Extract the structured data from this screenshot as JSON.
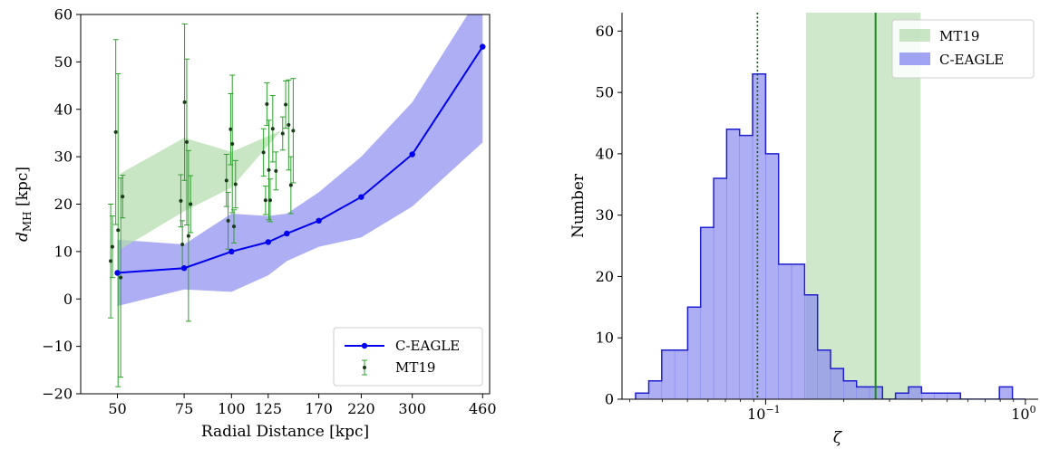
{
  "chart_data": [
    {
      "type": "line",
      "xlabel": "Radial Distance [kpc]",
      "ylabel_main": "d",
      "ylabel_sub": "MH",
      "ylabel_unit": " [kpc]",
      "xscale": "log",
      "xlim": [
        40,
        480
      ],
      "ylim": [
        -20,
        60
      ],
      "x_ticks": [
        {
          "value": 50,
          "label": "50"
        },
        {
          "value": 75,
          "label": "75"
        },
        {
          "value": 100,
          "label": "100"
        },
        {
          "value": 125,
          "label": "125"
        },
        {
          "value": 170,
          "label": "170"
        },
        {
          "value": 220,
          "label": "220"
        },
        {
          "value": 300,
          "label": "300"
        },
        {
          "value": 460,
          "label": "460"
        }
      ],
      "y_ticks": [
        {
          "value": -20,
          "label": "−20"
        },
        {
          "value": -10,
          "label": "−10"
        },
        {
          "value": 0,
          "label": "0"
        },
        {
          "value": 10,
          "label": "10"
        },
        {
          "value": 20,
          "label": "20"
        },
        {
          "value": 30,
          "label": "30"
        },
        {
          "value": 40,
          "label": "40"
        },
        {
          "value": 50,
          "label": "50"
        },
        {
          "value": 60,
          "label": "60"
        }
      ],
      "legend_position": "lower-right",
      "legend": [
        {
          "label": "C-EAGLE",
          "kind": "line-marker",
          "color": "#0000ee"
        },
        {
          "label": "MT19",
          "kind": "errorbar",
          "color": "#2ca02c"
        }
      ],
      "series": [
        {
          "name": "C-EAGLE",
          "color": "#0000ee",
          "x": [
            50,
            75,
            100,
            125,
            140,
            170,
            220,
            300,
            460
          ],
          "y": [
            5.5,
            6.5,
            10.0,
            12.0,
            13.8,
            16.5,
            21.5,
            30.5,
            53.2
          ],
          "band_lower": [
            -1.5,
            2.0,
            1.5,
            5.0,
            8.0,
            11.0,
            13.0,
            19.5,
            33.0
          ],
          "band_upper": [
            12.5,
            11.5,
            18.0,
            17.5,
            18.0,
            22.5,
            30.0,
            41.5,
            65.0
          ],
          "band_color": "#8a8cf0"
        },
        {
          "name": "MT19",
          "color": "#2ca02c",
          "band_polygon": {
            "x": [
              51,
              75,
              100,
              135,
              100,
              75,
              51
            ],
            "y": [
              26.5,
              34.0,
              31.0,
              35.5,
              23.5,
              18.5,
              10.5
            ]
          },
          "band_color": "#b5dcb0",
          "points": [
            {
              "x": 48.0,
              "y": 8.0,
              "err": 12.0
            },
            {
              "x": 48.5,
              "y": 11.0,
              "err": 6.5
            },
            {
              "x": 49.5,
              "y": 35.2,
              "err": 19.5
            },
            {
              "x": 50.2,
              "y": 14.5,
              "err": 33.0
            },
            {
              "x": 51.0,
              "y": 4.5,
              "err": 21.0
            },
            {
              "x": 51.6,
              "y": 21.6,
              "err": 4.5
            },
            {
              "x": 73.5,
              "y": 20.7,
              "err": 5.5
            },
            {
              "x": 74.2,
              "y": 11.5,
              "err": 5.0
            },
            {
              "x": 75.2,
              "y": 41.5,
              "err": 16.5
            },
            {
              "x": 76.2,
              "y": 33.1,
              "err": 17.5
            },
            {
              "x": 77.0,
              "y": 13.3,
              "err": 18.0
            },
            {
              "x": 78.0,
              "y": 20.0,
              "err": 6.0
            },
            {
              "x": 97.0,
              "y": 25.0,
              "err": 5.5
            },
            {
              "x": 98.0,
              "y": 16.5,
              "err": 6.0
            },
            {
              "x": 99.5,
              "y": 35.8,
              "err": 7.5
            },
            {
              "x": 100.5,
              "y": 32.7,
              "err": 14.5
            },
            {
              "x": 101.5,
              "y": 15.3,
              "err": 3.5
            },
            {
              "x": 102.5,
              "y": 24.2,
              "err": 5.0
            },
            {
              "x": 121.5,
              "y": 30.9,
              "err": 5.0
            },
            {
              "x": 123.0,
              "y": 20.8,
              "err": 3.0
            },
            {
              "x": 124.0,
              "y": 41.1,
              "err": 4.5
            },
            {
              "x": 125.5,
              "y": 27.2,
              "err": 10.5
            },
            {
              "x": 126.5,
              "y": 20.8,
              "err": 4.5
            },
            {
              "x": 128.5,
              "y": 35.9,
              "err": 7.0
            },
            {
              "x": 131.0,
              "y": 27.0,
              "err": 4.0
            },
            {
              "x": 136.5,
              "y": 34.9,
              "err": 3.5
            },
            {
              "x": 139.0,
              "y": 41.0,
              "err": 5.0
            },
            {
              "x": 141.5,
              "y": 36.7,
              "err": 9.5
            },
            {
              "x": 143.5,
              "y": 24.0,
              "err": 6.0
            },
            {
              "x": 145.5,
              "y": 35.5,
              "err": 11.0
            }
          ]
        }
      ]
    },
    {
      "type": "histogram",
      "xlabel": "ζ",
      "ylabel": "Number",
      "xscale": "log",
      "xlim": [
        0.028,
        1.12
      ],
      "ylim": [
        0,
        63
      ],
      "x_ticks": [
        {
          "value": 0.1,
          "base": "10",
          "exp": "−1"
        },
        {
          "value": 1.0,
          "base": "10",
          "exp": "0"
        }
      ],
      "y_ticks": [
        {
          "value": 0,
          "label": "0"
        },
        {
          "value": 10,
          "label": "10"
        },
        {
          "value": 20,
          "label": "20"
        },
        {
          "value": 30,
          "label": "30"
        },
        {
          "value": 40,
          "label": "40"
        },
        {
          "value": 50,
          "label": "50"
        },
        {
          "value": 60,
          "label": "60"
        }
      ],
      "legend_position": "upper-right",
      "legend": [
        {
          "label": "MT19",
          "color": "#b5dcb0"
        },
        {
          "label": "C-EAGLE",
          "color": "#8a8cf0"
        }
      ],
      "series": [
        {
          "name": "C-EAGLE",
          "color": "#8a8cf0",
          "edge_color": "#1f1fd0",
          "bin_edges": [
            0.0316,
            0.0355,
            0.0398,
            0.0447,
            0.0501,
            0.0562,
            0.0631,
            0.0708,
            0.0794,
            0.0891,
            0.1,
            0.1122,
            0.1259,
            0.1413,
            0.1585,
            0.1778,
            0.1995,
            0.2239,
            0.2512,
            0.2818,
            0.3162,
            0.3548,
            0.3981,
            0.4467,
            0.5012,
            0.5623,
            0.631,
            0.7079,
            0.7943,
            0.8913,
            1.0
          ],
          "counts": [
            1,
            3,
            8,
            8,
            15,
            28,
            36,
            44,
            43,
            53,
            40,
            22,
            22,
            17,
            8,
            5,
            3,
            2,
            2,
            0,
            1,
            2,
            1,
            1,
            1,
            0,
            0,
            0,
            2,
            0
          ]
        },
        {
          "name": "MT19",
          "color": "#b5dcb0",
          "band": [
            0.143,
            0.395
          ],
          "line_value": 0.265,
          "line_color": "#1a8a1a"
        }
      ],
      "reference_line": {
        "value": 0.093,
        "style": "dotted",
        "color": "#0d5a0d"
      }
    }
  ]
}
